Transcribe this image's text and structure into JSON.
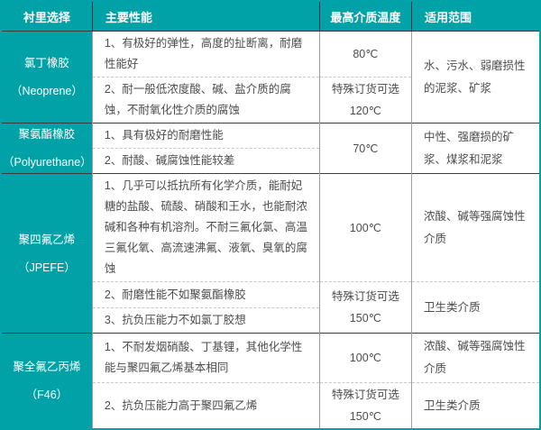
{
  "colors": {
    "header_bg": "#00a1a7",
    "header_text": "#ffffff",
    "body_text": "#4d4d4d",
    "group_divider": "#3c3c3c",
    "sub_divider_dashed": "#c8c8c8",
    "column_divider": "#9f9f9f"
  },
  "header": {
    "lining": "衬里选择",
    "performance": "主要性能",
    "max_temp": "最高介质温度",
    "range": "适用范围"
  },
  "materials": [
    {
      "name": "氯丁橡胶",
      "alias": "（Neoprene）",
      "performance": [
        "1、有极好的弹性，高度的扯断离，耐磨性能好",
        "2、耐一般低浓度酸、碱、盐介质的腐蚀，不耐氧化性介质的腐蚀"
      ],
      "temperatures": [
        [
          "80℃"
        ],
        [
          "特殊订货可选",
          "120℃"
        ]
      ],
      "range": [
        "水、污水、弱磨损性的泥浆、矿浆"
      ]
    },
    {
      "name": "聚氨酯橡胶",
      "alias": "（Polyurethane）",
      "performance": [
        "1、具有极好的耐磨性能",
        "2、耐酸、碱腐蚀性能较差"
      ],
      "temperatures": [
        [
          "70℃"
        ]
      ],
      "range": [
        "中性、强磨损的矿浆、煤浆和泥浆"
      ]
    },
    {
      "name": "聚四氟乙烯",
      "alias": "（JPEFE）",
      "performance": [
        "1、几乎可以抵抗所有化学介质，能耐妃糖的盐酸、硫酸、硝酸和王水，也能耐浓碱和各种有机溶剂。不耐三氟化氯、高温三氟化氧、高流速沸氟、液氧、臭氧的腐蚀",
        "2、耐磨性能不如聚氨酯橡胶",
        "3、抗负压能力不如氯丁胶想"
      ],
      "temperatures": [
        [
          "100℃"
        ],
        [
          "特殊订货可选",
          "150℃"
        ]
      ],
      "range": [
        "浓酸、碱等强腐蚀性介质",
        "卫生类介质"
      ]
    },
    {
      "name": "聚全氟乙丙烯",
      "alias": "（F46）",
      "performance": [
        "1、不耐发烟硝酸、丁基锂，其他化学性能与聚四氟乙烯基本相同",
        "2、抗负压能力高于聚四氟乙烯"
      ],
      "temperatures": [
        [
          "100℃"
        ],
        [
          "特殊订货可选",
          "150℃"
        ]
      ],
      "range": [
        "浓酸、碱等强腐蚀性介质",
        "卫生类介质"
      ]
    }
  ]
}
